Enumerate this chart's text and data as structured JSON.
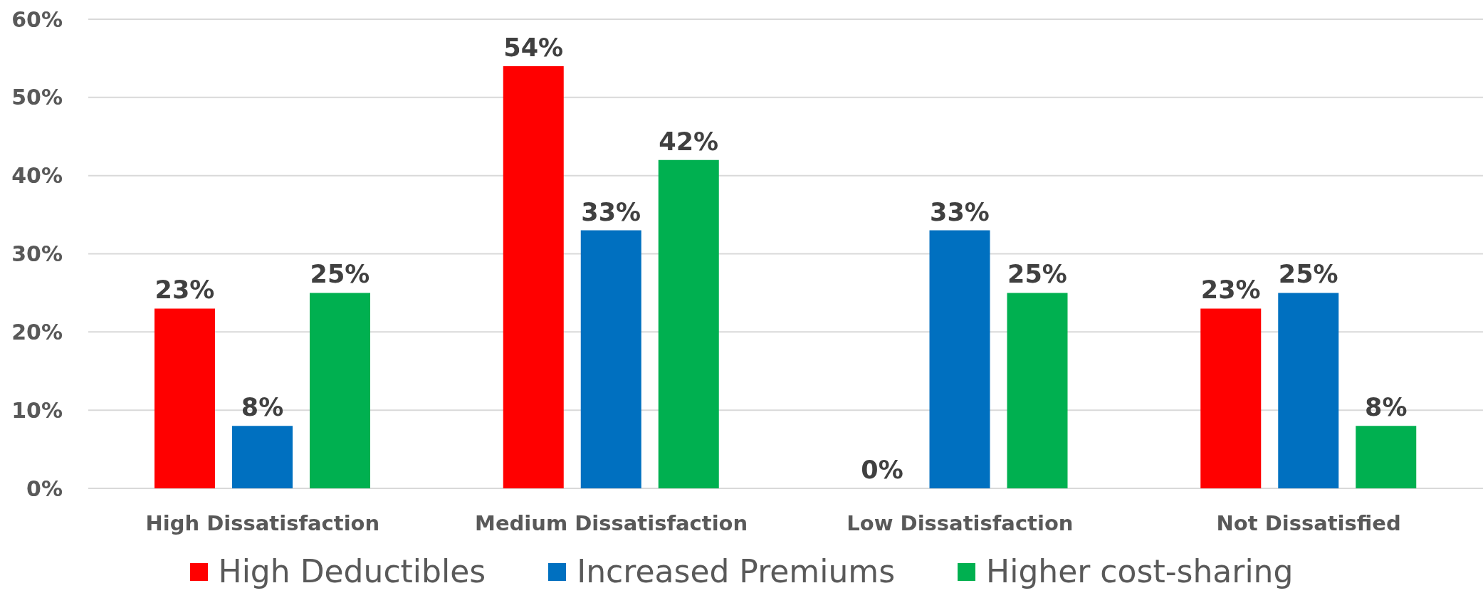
{
  "chart_data": {
    "type": "bar",
    "categories": [
      "High Dissatisfaction",
      "Medium Dissatisfaction",
      "Low Dissatisfaction",
      "Not Dissatisfied"
    ],
    "series": [
      {
        "name": "High Deductibles",
        "color": "#ff0000",
        "values": [
          23,
          54,
          0,
          23
        ],
        "value_labels": [
          "23%",
          "54%",
          "0%",
          "23%"
        ]
      },
      {
        "name": "Increased Premiums",
        "color": "#0070c0",
        "values": [
          8,
          33,
          33,
          25
        ],
        "value_labels": [
          "8%",
          "33%",
          "33%",
          "25%"
        ]
      },
      {
        "name": "Higher cost-sharing",
        "color": "#00b050",
        "values": [
          25,
          42,
          25,
          8
        ],
        "value_labels": [
          "25%",
          "42%",
          "25%",
          "8%"
        ]
      }
    ],
    "ylim": [
      0,
      60
    ],
    "yticks": [
      {
        "value": 0,
        "label": "0%"
      },
      {
        "value": 10,
        "label": "10%"
      },
      {
        "value": 20,
        "label": "20%"
      },
      {
        "value": 30,
        "label": "30%"
      },
      {
        "value": 40,
        "label": "40%"
      },
      {
        "value": 50,
        "label": "50%"
      },
      {
        "value": 60,
        "label": "60%"
      }
    ],
    "grid": "y",
    "legend": "bottom"
  }
}
